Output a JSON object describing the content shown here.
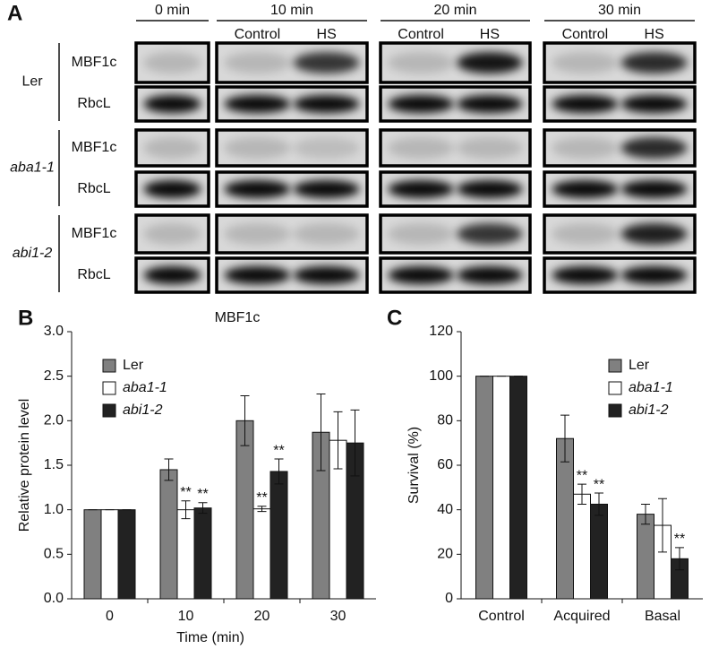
{
  "panel_a": {
    "label": "A",
    "times": [
      "0 min",
      "10 min",
      "20 min",
      "30 min"
    ],
    "conditions": [
      "Control",
      "HS"
    ],
    "genotypes": [
      {
        "name": "Ler",
        "rows": [
          "MBF1c",
          "RbcL"
        ]
      },
      {
        "name": "aba1-1",
        "rows": [
          "MBF1c",
          "RbcL"
        ]
      },
      {
        "name": "abi1-2",
        "rows": [
          "MBF1c",
          "RbcL"
        ]
      }
    ]
  },
  "chart_data": [
    {
      "type": "bar",
      "panel": "B",
      "title": "MBF1c",
      "x_label": "Time (min)",
      "y_label": "Relative protein level",
      "categories": [
        "0",
        "10",
        "20",
        "30"
      ],
      "series": [
        {
          "name": "Ler",
          "color": "#808080",
          "values": [
            1.0,
            1.45,
            2.0,
            1.87
          ],
          "errors": [
            0,
            0.12,
            0.28,
            0.43
          ],
          "significance": [
            null,
            null,
            null,
            null
          ]
        },
        {
          "name": "aba1-1",
          "color": "#ffffff",
          "values": [
            1.0,
            1.0,
            1.01,
            1.78
          ],
          "errors": [
            0,
            0.1,
            0.03,
            0.32
          ],
          "significance": [
            null,
            "**",
            "**",
            null
          ]
        },
        {
          "name": "abi1-2",
          "color": "#222222",
          "values": [
            1.0,
            1.02,
            1.43,
            1.75
          ],
          "errors": [
            0,
            0.06,
            0.14,
            0.37
          ],
          "significance": [
            null,
            "**",
            "**",
            null
          ]
        }
      ],
      "ylim": [
        0,
        3
      ],
      "yticks": [
        {
          "value": 0,
          "label": "0.0"
        },
        {
          "value": 0.5,
          "label": "0.5"
        },
        {
          "value": 1,
          "label": "1.0"
        },
        {
          "value": 1.5,
          "label": "1.5"
        },
        {
          "value": 2,
          "label": "2.0"
        },
        {
          "value": 2.5,
          "label": "2.5"
        },
        {
          "value": 3,
          "label": "3.0"
        }
      ],
      "legend": "upper left"
    },
    {
      "type": "bar",
      "panel": "C",
      "y_label": "Survival (%)",
      "categories": [
        "Control",
        "Acquired",
        "Basal"
      ],
      "series": [
        {
          "name": "Ler",
          "color": "#808080",
          "values": [
            100,
            72,
            38
          ],
          "errors": [
            0,
            10.5,
            4.5
          ],
          "significance": [
            null,
            null,
            null
          ]
        },
        {
          "name": "aba1-1",
          "color": "#ffffff",
          "values": [
            100,
            47,
            33
          ],
          "errors": [
            0,
            4.5,
            12
          ],
          "significance": [
            null,
            "**",
            null
          ]
        },
        {
          "name": "abi1-2",
          "color": "#222222",
          "values": [
            100,
            42.5,
            18
          ],
          "errors": [
            0,
            5,
            5
          ],
          "significance": [
            null,
            "**",
            "**"
          ]
        }
      ],
      "ylim": [
        0,
        120
      ],
      "yticks": [
        0,
        20,
        40,
        60,
        80,
        100,
        120
      ],
      "legend": "upper right"
    }
  ]
}
